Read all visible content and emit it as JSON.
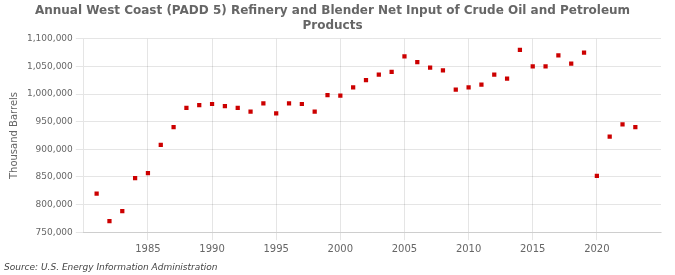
{
  "chart_data": {
    "type": "scatter",
    "title": "Annual West Coast (PADD 5) Refinery and Blender Net Input of Crude Oil and Petroleum\nProducts",
    "ylabel": "Thousand Barrels",
    "source": "Source: U.S. Energy Information Administration",
    "x": [
      1981,
      1982,
      1983,
      1984,
      1985,
      1986,
      1987,
      1988,
      1989,
      1990,
      1991,
      1992,
      1993,
      1994,
      1995,
      1996,
      1997,
      1998,
      1999,
      2000,
      2001,
      2002,
      2003,
      2004,
      2005,
      2006,
      2007,
      2008,
      2009,
      2010,
      2011,
      2012,
      2013,
      2014,
      2015,
      2016,
      2017,
      2018,
      2019,
      2020,
      2021,
      2022,
      2023
    ],
    "values": [
      820000,
      770000,
      788000,
      848000,
      857000,
      908000,
      940000,
      975000,
      980000,
      982000,
      978000,
      975000,
      968000,
      983000,
      965000,
      983000,
      982000,
      968000,
      998000,
      997000,
      1012000,
      1025000,
      1035000,
      1040000,
      1068000,
      1058000,
      1048000,
      1043000,
      1008000,
      1012000,
      1017000,
      1035000,
      1028000,
      1080000,
      1050000,
      1050000,
      1070000,
      1055000,
      1075000,
      852000,
      923000,
      945000,
      940000
    ],
    "color": "#cc0000",
    "marker": "square",
    "xlim": [
      1980,
      2025
    ],
    "xticks": [
      1985,
      1990,
      1995,
      2000,
      2005,
      2010,
      2015,
      2020
    ],
    "ylim": [
      750000,
      1100000
    ],
    "yticks": [
      {
        "value": 750000,
        "label": "750,000"
      },
      {
        "value": 800000,
        "label": "800,000"
      },
      {
        "value": 850000,
        "label": "850,000"
      },
      {
        "value": 900000,
        "label": "900,000"
      },
      {
        "value": 950000,
        "label": "950,000"
      },
      {
        "value": 1000000,
        "label": "1,000,000"
      },
      {
        "value": 1050000,
        "label": "1,050,000"
      },
      {
        "value": 1100000,
        "label": "1,100,000"
      }
    ],
    "grid": true
  }
}
